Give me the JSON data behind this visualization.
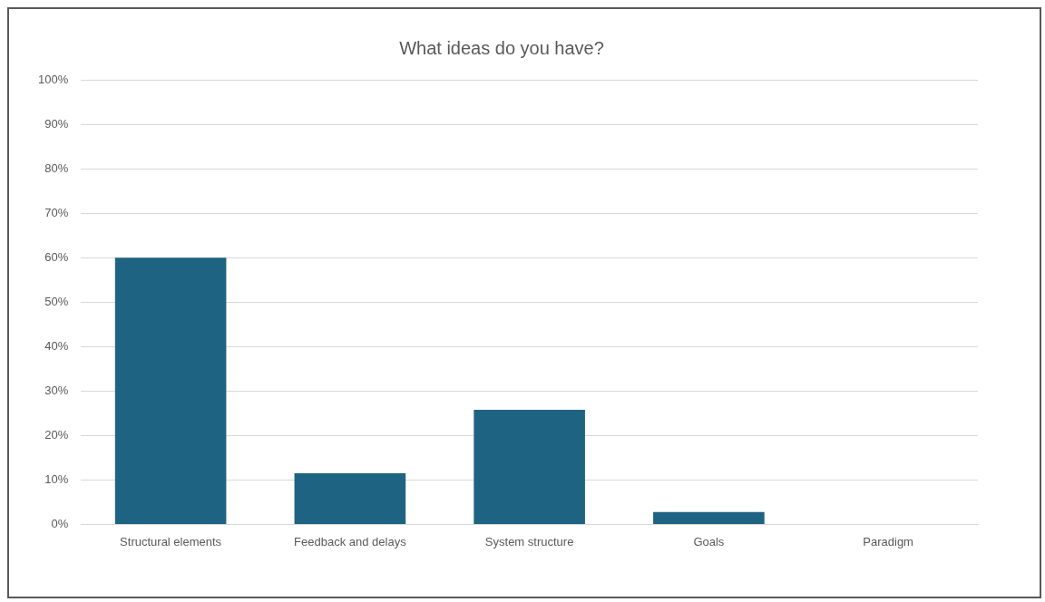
{
  "chart_data": {
    "type": "bar",
    "title": "What ideas do you have?",
    "categories": [
      "Structural elements",
      "Feedback and delays",
      "System structure",
      "Goals",
      "Paradigm"
    ],
    "values": [
      60,
      11.5,
      25.8,
      2.8,
      0
    ],
    "color": "#1f6382",
    "ylim": [
      0,
      100
    ],
    "yticks": [
      {
        "value": 0,
        "label": "0%"
      },
      {
        "value": 10,
        "label": "10%"
      },
      {
        "value": 20,
        "label": "20%"
      },
      {
        "value": 30,
        "label": "30%"
      },
      {
        "value": 40,
        "label": "40%"
      },
      {
        "value": 50,
        "label": "50%"
      },
      {
        "value": 60,
        "label": "60%"
      },
      {
        "value": 70,
        "label": "70%"
      },
      {
        "value": 80,
        "label": "80%"
      },
      {
        "value": 90,
        "label": "90%"
      },
      {
        "value": 100,
        "label": "100%"
      }
    ],
    "grid": "y",
    "legend": false
  }
}
